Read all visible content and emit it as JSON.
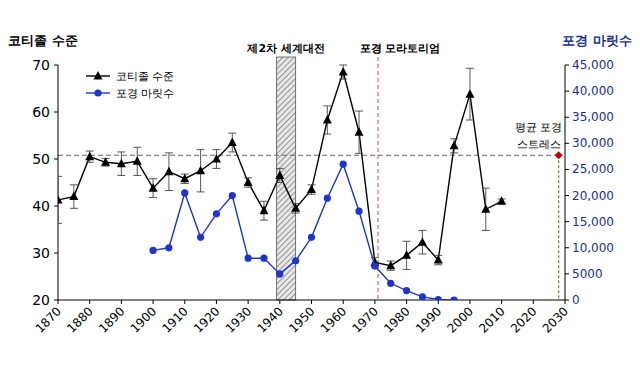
{
  "chart_data": {
    "type": "line",
    "y_label": "코티졸 수준",
    "y2_label": "포경 마릿수",
    "x": [
      1870,
      1875,
      1880,
      1885,
      1890,
      1895,
      1900,
      1905,
      1910,
      1915,
      1920,
      1925,
      1930,
      1935,
      1940,
      1945,
      1950,
      1955,
      1960,
      1965,
      1970,
      1975,
      1980,
      1985,
      1990,
      1995,
      2000,
      2005,
      2010
    ],
    "xlim": [
      1870,
      2030
    ],
    "xticks": [
      1870,
      1880,
      1890,
      1900,
      1910,
      1920,
      1930,
      1940,
      1950,
      1960,
      1970,
      1980,
      1990,
      2000,
      2010,
      2020,
      2030
    ],
    "ylim": [
      20,
      70
    ],
    "yticks": [
      20,
      30,
      40,
      50,
      60,
      70
    ],
    "y2lim": [
      0,
      45000
    ],
    "y2ticks": [
      0,
      5000,
      {
        "value": 10000,
        "label": "10,000"
      },
      {
        "value": 15000,
        "label": "15,000"
      },
      {
        "value": 20000,
        "label": "20,000"
      },
      {
        "value": 25000,
        "label": "25,000"
      },
      {
        "value": 30000,
        "label": "30,000"
      },
      {
        "value": 35000,
        "label": "35,000"
      },
      {
        "value": 40000,
        "label": "40,000"
      },
      {
        "value": 45000,
        "label": "45,000"
      }
    ],
    "legend": "upper left",
    "series": [
      {
        "name": "코티졸 수준",
        "color": "#000000",
        "marker": "triangle",
        "values": [
          41.3,
          42,
          50.5,
          49.3,
          49,
          49.5,
          43.8,
          47.3,
          45.8,
          47.5,
          50,
          53.5,
          45,
          39,
          46.5,
          39.5,
          43.5,
          58.3,
          68.5,
          55.7,
          28,
          27.3,
          29.5,
          32.3,
          28.5,
          52.8,
          63.8,
          39.3,
          41
        ],
        "errors": [
          5,
          2.5,
          1.2,
          0.8,
          2.5,
          3,
          2,
          4,
          1,
          4.5,
          2,
          2,
          1,
          2,
          1.5,
          1,
          1,
          3,
          1.5,
          4.5,
          1,
          1,
          3,
          2.5,
          1,
          1.5,
          5.5,
          4.5,
          0.5
        ]
      },
      {
        "name": "포경 마릿수",
        "color": "#1f35c8",
        "marker": "circle",
        "axis": "y2",
        "values": [
          null,
          null,
          null,
          null,
          null,
          null,
          9500,
          10000,
          20500,
          12000,
          16500,
          20000,
          8000,
          8000,
          5000,
          7500,
          12000,
          19500,
          26000,
          17000,
          6500,
          3200,
          1800,
          600,
          100,
          0,
          null,
          null,
          null
        ]
      }
    ],
    "annotations": [
      {
        "type": "band",
        "x": [
          1939,
          1945
        ],
        "text": "제2차 세계대전"
      },
      {
        "type": "vline",
        "x": 1971,
        "text": "포경 모라토리엄",
        "color": "#c0504d"
      },
      {
        "type": "hline",
        "y": 50.8,
        "x": 2028,
        "text": [
          "평균 포경",
          "스트레스"
        ],
        "color": "#c00000"
      }
    ]
  }
}
